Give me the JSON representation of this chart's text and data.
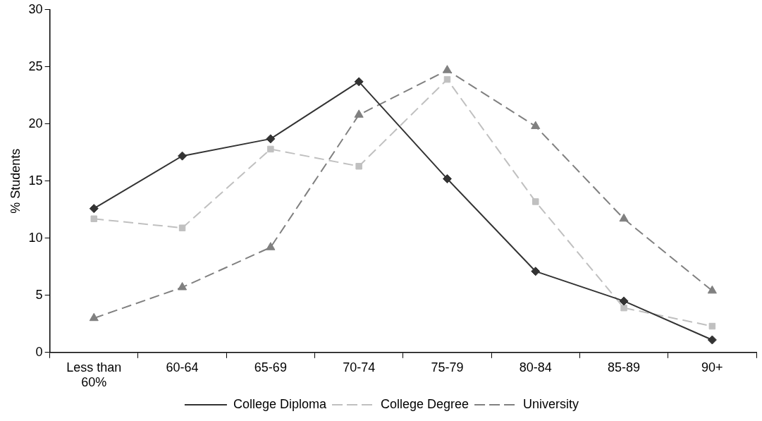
{
  "chart_data": {
    "type": "line",
    "ylabel": "% Students",
    "categories": [
      "Less than 60%",
      "60-64",
      "65-69",
      "70-74",
      "75-79",
      "80-84",
      "85-89",
      "90+"
    ],
    "series": [
      {
        "name": "College Diploma",
        "color": "#333333",
        "marker": "diamond",
        "line_style": "solid",
        "values": [
          12.6,
          17.2,
          18.7,
          23.7,
          15.2,
          7.1,
          4.5,
          1.1
        ]
      },
      {
        "name": "College Degree",
        "color": "#c0c0c0",
        "marker": "square",
        "line_style": "dashed",
        "values": [
          11.7,
          10.9,
          17.8,
          16.3,
          23.9,
          13.2,
          3.9,
          2.3
        ]
      },
      {
        "name": "University",
        "color": "#808080",
        "marker": "triangle",
        "line_style": "dashed",
        "values": [
          3.0,
          5.7,
          9.2,
          20.8,
          24.7,
          19.8,
          11.7,
          5.4
        ]
      }
    ],
    "ylim": [
      0,
      30
    ],
    "yticks": [
      0,
      5,
      10,
      15,
      20,
      25,
      30
    ],
    "grid": false,
    "legend": "bottom"
  }
}
